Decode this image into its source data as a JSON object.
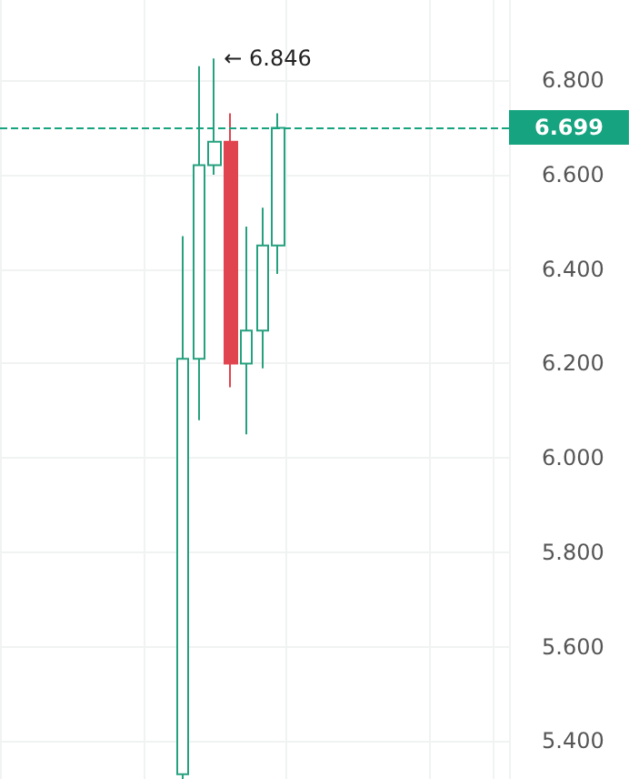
{
  "chart_data": {
    "type": "candlestick",
    "categories": [
      null,
      null,
      null,
      null,
      null,
      null,
      null,
      null,
      null,
      null,
      null,
      null,
      null,
      null,
      null,
      null,
      null,
      null,
      null,
      null,
      null,
      null,
      null,
      null,
      null,
      null,
      null,
      null,
      null,
      null,
      null,
      null
    ],
    "ohlc": [
      null,
      null,
      null,
      null,
      null,
      null,
      null,
      null,
      null,
      null,
      null,
      [
        5.33,
        6.47,
        5.32,
        6.21
      ],
      [
        6.21,
        6.83,
        6.08,
        6.62
      ],
      [
        6.62,
        6.846,
        6.6,
        6.67
      ],
      [
        6.67,
        6.73,
        6.15,
        6.2
      ],
      [
        6.2,
        6.49,
        6.05,
        6.27
      ],
      [
        6.27,
        6.53,
        6.19,
        6.45
      ],
      [
        6.45,
        6.73,
        6.39,
        6.699
      ],
      null,
      null,
      null,
      null,
      null,
      null,
      null,
      null,
      null,
      null,
      null,
      null,
      null,
      null
    ],
    "colors": [
      null,
      null,
      null,
      null,
      null,
      null,
      null,
      null,
      null,
      null,
      null,
      "#26a17f",
      "#26a17f",
      "#26a17f",
      "#e0454f",
      "#26a17f",
      "#26a17f",
      "#26a17f",
      null,
      null,
      null,
      null,
      null,
      null,
      null,
      null,
      null,
      null,
      null,
      null,
      null,
      null
    ],
    "ylim": [
      5.32,
      6.97
    ],
    "yticks": [
      {
        "value": 5.4,
        "label": "5.400"
      },
      {
        "value": 5.6,
        "label": "5.600"
      },
      {
        "value": 5.8,
        "label": "5.800"
      },
      {
        "value": 6.0,
        "label": "6.000"
      },
      {
        "value": 6.2,
        "label": "6.200"
      },
      {
        "value": 6.4,
        "label": "6.400"
      },
      {
        "value": 6.6,
        "label": "6.600"
      },
      {
        "value": 6.8,
        "label": "6.800"
      }
    ],
    "ref_lines": [
      {
        "axis": "y",
        "value": 6.699,
        "label": "6.699",
        "color": "#16a37f",
        "line_style": "dashed"
      }
    ],
    "annotations": [
      "← 6.846"
    ],
    "grid": true,
    "tick_labels": "y"
  }
}
